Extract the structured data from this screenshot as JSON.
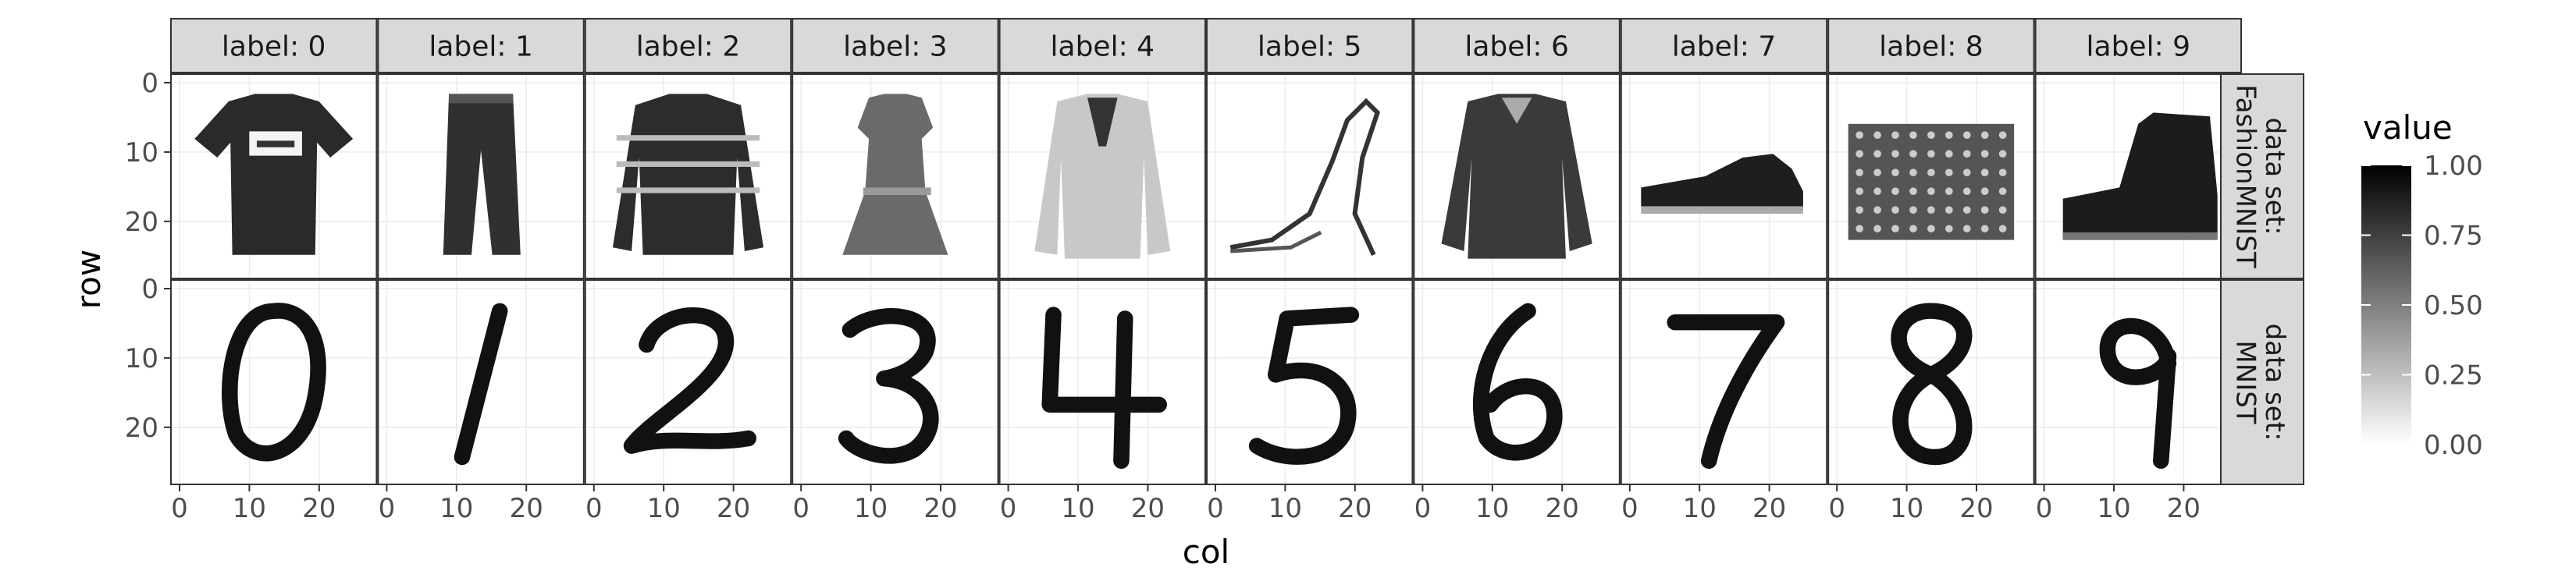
{
  "chart_data": {
    "type": "heatmap",
    "facet_col_prefix": "label: ",
    "facet_row_prefix": "data set: ",
    "col_labels": [
      "0",
      "1",
      "2",
      "3",
      "4",
      "5",
      "6",
      "7",
      "8",
      "9"
    ],
    "row_labels": [
      "FashionMNIST",
      "MNIST"
    ],
    "xlabel": "col",
    "ylabel": "row",
    "x_ticks": [
      0,
      10,
      20
    ],
    "y_ticks": [
      0,
      10,
      20
    ],
    "xlim": [
      0,
      27
    ],
    "ylim": [
      0,
      27
    ],
    "y_reversed": true,
    "legend": {
      "title": "value",
      "ticks": [
        "1.00",
        "0.75",
        "0.50",
        "0.25",
        "0.00"
      ],
      "range": [
        0,
        1
      ],
      "low_color": "#ffffff",
      "high_color": "#000000",
      "position": "right"
    },
    "strip_fill": "#d9d9d9",
    "panel_images": [
      [
        "t-shirt",
        "trouser",
        "pullover",
        "dress",
        "coat",
        "sandal",
        "shirt",
        "sneaker",
        "bag",
        "ankle boot"
      ],
      [
        "digit 0",
        "digit 1",
        "digit 2",
        "digit 3",
        "digit 4",
        "digit 5",
        "digit 6",
        "digit 7",
        "digit 8",
        "digit 9"
      ]
    ]
  }
}
